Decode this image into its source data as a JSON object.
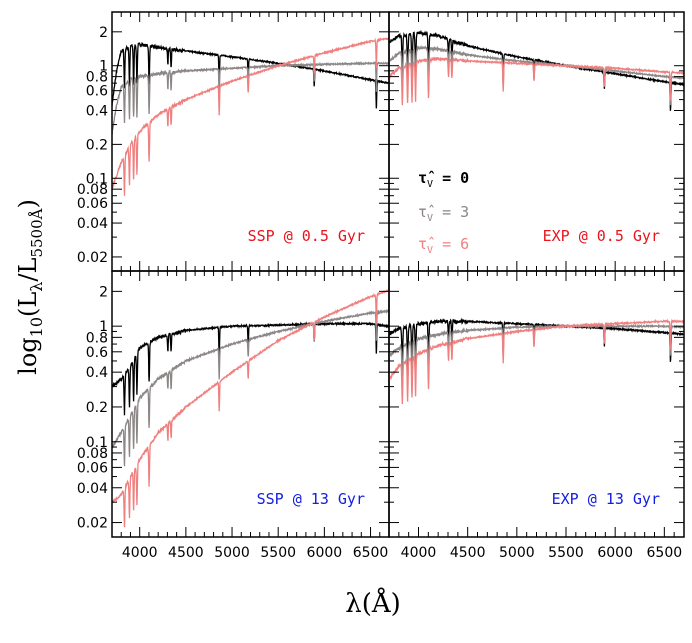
{
  "chart_data": {
    "type": "line",
    "xlabel": "λ(Å)",
    "ylabel": {
      "prefix": "log",
      "sub1": "10",
      "mid": "(L",
      "sub2": "λ",
      "slash": "/L",
      "sub3": "5500Å",
      "close": ")"
    },
    "xlim": [
      3700,
      6700
    ],
    "ylim": [
      0.015,
      3.0
    ],
    "yscale": "log",
    "x_ticks": [
      4000,
      4500,
      5000,
      5500,
      6000,
      6500
    ],
    "y_tick_labels": [
      {
        "value": 2,
        "label": "2"
      },
      {
        "value": 1,
        "label": "1"
      },
      {
        "value": 0.8,
        "label": "0.8"
      },
      {
        "value": 0.6,
        "label": "0.6"
      },
      {
        "value": 0.4,
        "label": "0.4"
      },
      {
        "value": 0.2,
        "label": "0.2"
      },
      {
        "value": 0.1,
        "label": "0.1"
      },
      {
        "value": 0.08,
        "label": "0.08"
      },
      {
        "value": 0.06,
        "label": "0.06"
      },
      {
        "value": 0.04,
        "label": "0.04"
      },
      {
        "value": 0.02,
        "label": "0.02"
      }
    ],
    "legend": [
      {
        "symbol": "τ̂",
        "sub": "V",
        "text": " = 0",
        "color": "#000000"
      },
      {
        "symbol": "τ̂",
        "sub": "V",
        "text": " = 3",
        "color": "#8c8686"
      },
      {
        "symbol": "τ̂",
        "sub": "V",
        "text": " = 6",
        "color": "#f08080"
      }
    ],
    "absorption_lines": [
      3835,
      3889,
      3934,
      3970,
      4102,
      4305,
      4340,
      4861,
      5175,
      5890,
      6563
    ],
    "panels": [
      {
        "label": "SSP @ 0.5 Gyr",
        "label_color": "#e8141e",
        "series": [
          {
            "name": "τ̂V = 0",
            "color": "#000000",
            "x": [
              3700,
              3750,
              3800,
              3900,
              4000,
              4200,
              4500,
              5000,
              5500,
              6000,
              6500,
              6700
            ],
            "y": [
              0.45,
              0.9,
              1.35,
              1.5,
              1.55,
              1.45,
              1.35,
              1.2,
              1.05,
              0.9,
              0.75,
              0.7
            ]
          },
          {
            "name": "τ̂V = 3",
            "color": "#8c8686",
            "x": [
              3700,
              3750,
              3800,
              3900,
              4000,
              4200,
              4500,
              5000,
              5500,
              6000,
              6500,
              6700
            ],
            "y": [
              0.25,
              0.45,
              0.65,
              0.75,
              0.8,
              0.85,
              0.9,
              0.95,
              1.0,
              1.03,
              1.05,
              1.05
            ]
          },
          {
            "name": "τ̂V = 6",
            "color": "#f08080",
            "x": [
              3700,
              3800,
              3900,
              4000,
              4200,
              4500,
              5000,
              5500,
              6000,
              6500,
              6700
            ],
            "y": [
              0.08,
              0.14,
              0.2,
              0.26,
              0.37,
              0.5,
              0.73,
              1.0,
              1.3,
              1.65,
              1.75
            ]
          }
        ]
      },
      {
        "label": "EXP @ 0.5 Gyr",
        "label_color": "#e8141e",
        "series": [
          {
            "name": "τ̂V = 0",
            "color": "#000000",
            "x": [
              3700,
              3800,
              4000,
              4200,
              4500,
              5000,
              5500,
              6000,
              6500,
              6700
            ],
            "y": [
              1.6,
              1.85,
              1.95,
              1.85,
              1.5,
              1.2,
              1.0,
              0.85,
              0.72,
              0.68
            ]
          },
          {
            "name": "τ̂V = 3",
            "color": "#8c8686",
            "x": [
              3700,
              3800,
              4000,
              4200,
              4500,
              5000,
              5500,
              6000,
              6500,
              6700
            ],
            "y": [
              1.1,
              1.3,
              1.45,
              1.4,
              1.25,
              1.1,
              1.0,
              0.9,
              0.8,
              0.78
            ]
          },
          {
            "name": "τ̂V = 6",
            "color": "#f08080",
            "x": [
              3700,
              3800,
              4000,
              4200,
              4500,
              5000,
              5500,
              6000,
              6500,
              6700
            ],
            "y": [
              0.8,
              0.95,
              1.1,
              1.15,
              1.1,
              1.05,
              1.0,
              0.95,
              0.88,
              0.86
            ]
          }
        ]
      },
      {
        "label": "SSP @ 13 Gyr",
        "label_color": "#1420e0",
        "series": [
          {
            "name": "τ̂V = 0",
            "color": "#000000",
            "x": [
              3700,
              3800,
              3900,
              4000,
              4200,
              4500,
              5000,
              5500,
              6000,
              6500,
              6700
            ],
            "y": [
              0.3,
              0.35,
              0.45,
              0.65,
              0.8,
              0.92,
              1.0,
              1.02,
              1.05,
              1.05,
              1.0
            ]
          },
          {
            "name": "τ̂V = 3",
            "color": "#8c8686",
            "x": [
              3700,
              3800,
              3900,
              4000,
              4200,
              4500,
              5000,
              5500,
              6000,
              6500,
              6700
            ],
            "y": [
              0.09,
              0.12,
              0.17,
              0.24,
              0.35,
              0.5,
              0.7,
              0.9,
              1.1,
              1.3,
              1.35
            ]
          },
          {
            "name": "τ̂V = 6",
            "color": "#f08080",
            "x": [
              3700,
              3800,
              3900,
              4000,
              4200,
              4500,
              5000,
              5500,
              6000,
              6500,
              6700
            ],
            "y": [
              0.03,
              0.035,
              0.05,
              0.07,
              0.12,
              0.2,
              0.4,
              0.75,
              1.2,
              1.8,
              2.05
            ]
          }
        ]
      },
      {
        "label": "EXP @ 13 Gyr",
        "label_color": "#1420e0",
        "series": [
          {
            "name": "τ̂V = 0",
            "color": "#000000",
            "x": [
              3700,
              3800,
              4000,
              4200,
              4500,
              5000,
              5500,
              6000,
              6500,
              6700
            ],
            "y": [
              0.85,
              0.95,
              1.05,
              1.1,
              1.1,
              1.05,
              1.0,
              0.95,
              0.88,
              0.85
            ]
          },
          {
            "name": "τ̂V = 3",
            "color": "#8c8686",
            "x": [
              3700,
              3800,
              4000,
              4200,
              4500,
              5000,
              5500,
              6000,
              6500,
              6700
            ],
            "y": [
              0.55,
              0.65,
              0.78,
              0.85,
              0.92,
              0.98,
              1.0,
              1.0,
              1.0,
              0.98
            ]
          },
          {
            "name": "τ̂V = 6",
            "color": "#f08080",
            "x": [
              3700,
              3800,
              4000,
              4200,
              4500,
              5000,
              5500,
              6000,
              6500,
              6700
            ],
            "y": [
              0.35,
              0.45,
              0.58,
              0.68,
              0.78,
              0.9,
              1.0,
              1.05,
              1.1,
              1.1
            ]
          }
        ]
      }
    ]
  }
}
